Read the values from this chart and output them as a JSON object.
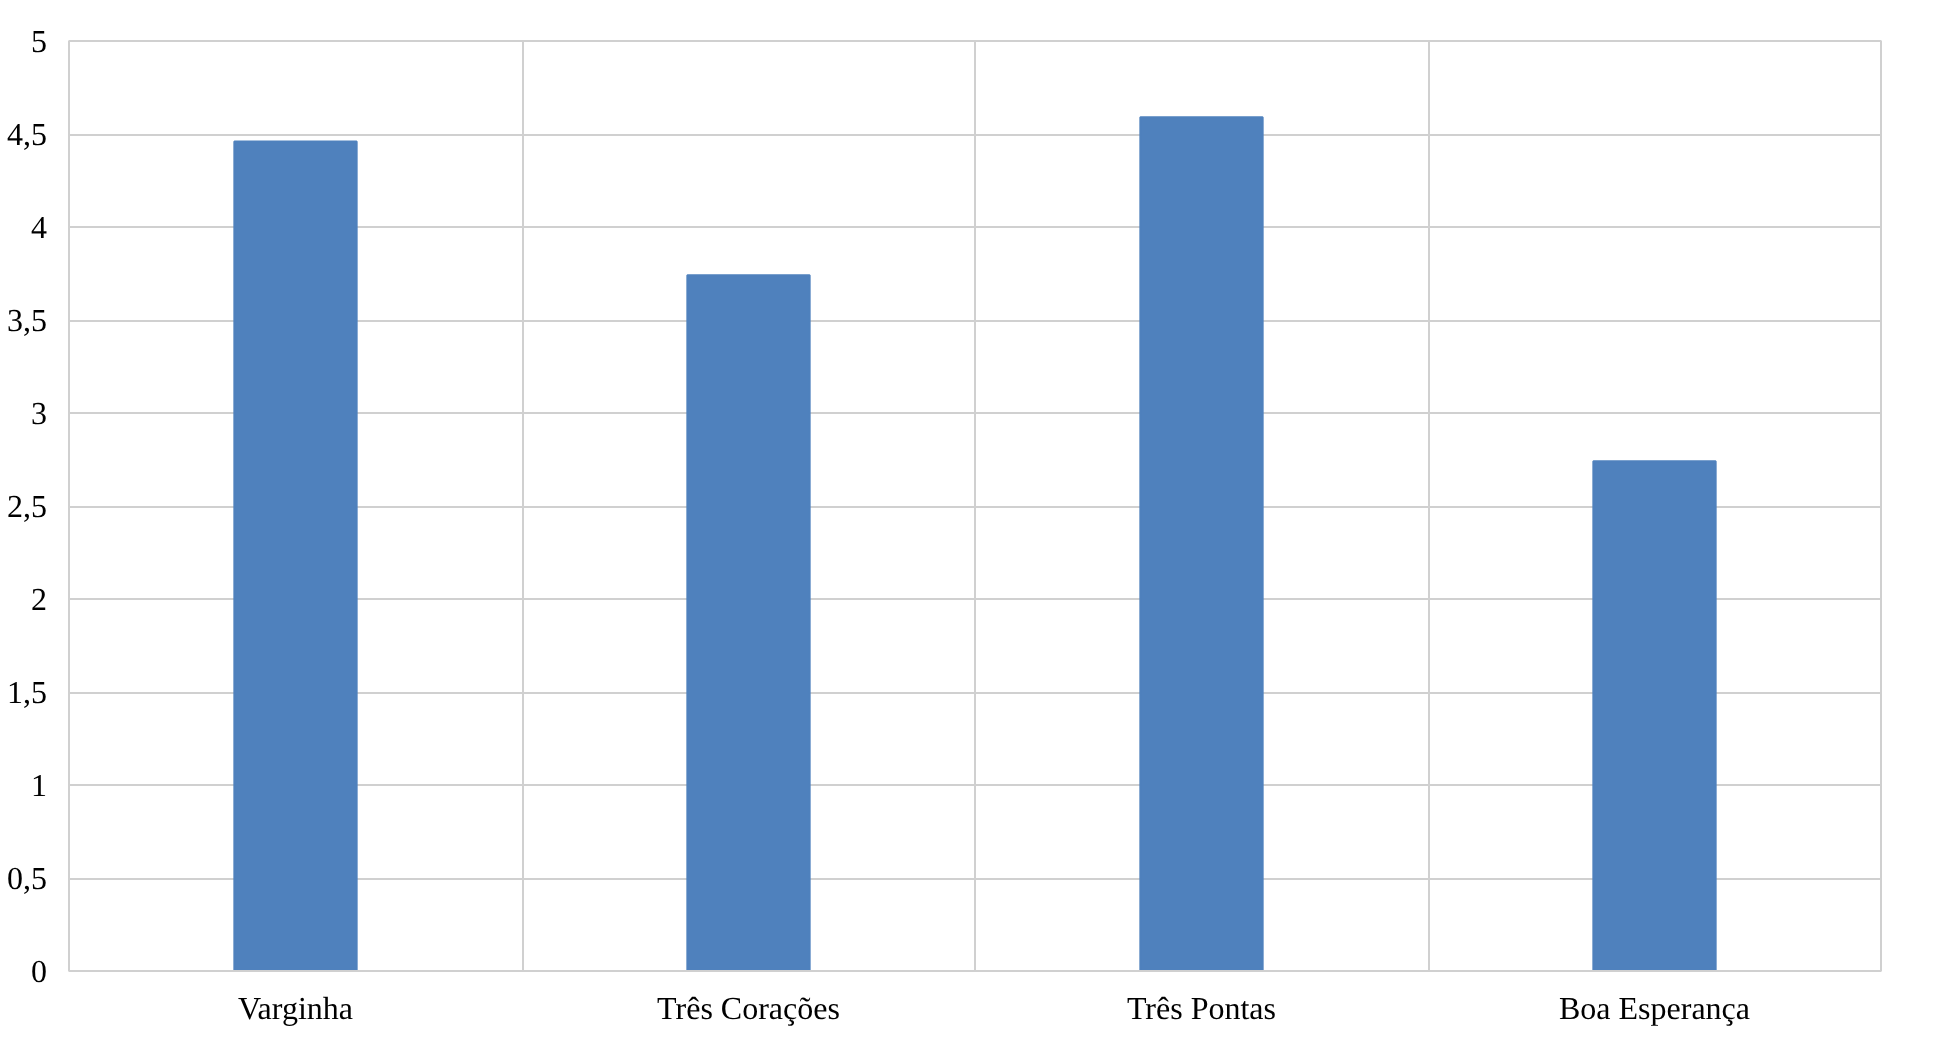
{
  "chart_data": {
    "type": "bar",
    "categories": [
      "Varginha",
      "Três Corações",
      "Três Pontas",
      "Boa Esperança"
    ],
    "values": [
      4.46,
      3.74,
      4.59,
      2.74
    ],
    "color": "#4f81bd",
    "ylim": [
      0,
      5
    ],
    "yticks": [
      0,
      {
        "value": 0.5,
        "label": "0,5"
      },
      1,
      {
        "value": 1.5,
        "label": "1,5"
      },
      2,
      {
        "value": 2.5,
        "label": "2,5"
      },
      3,
      {
        "value": 3.5,
        "label": "3,5"
      },
      4,
      {
        "value": 4.5,
        "label": "4,5"
      },
      5
    ],
    "grid": true
  }
}
